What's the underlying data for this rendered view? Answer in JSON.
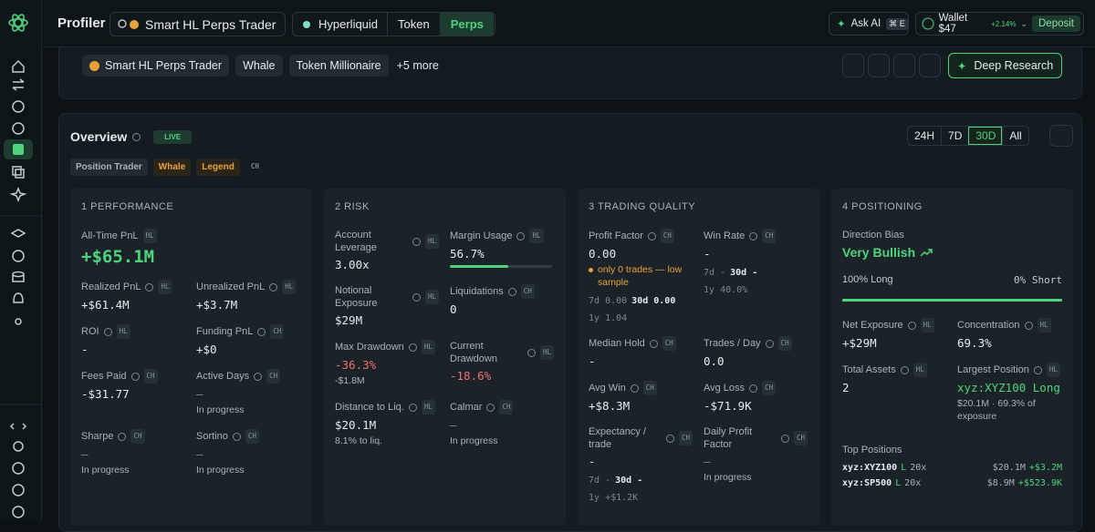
{
  "header": {
    "title": "Profiler",
    "search": "Smart HL Perps Trader",
    "chain": "Hyperliquid",
    "tabs": [
      "Token",
      "Perps"
    ],
    "ask_ai": "Ask AI",
    "shortcut": "⌘ E",
    "wallet": "Wallet $47",
    "wallet_change": "+2.14%",
    "deposit": "Deposit"
  },
  "profile": {
    "tags": [
      "Smart HL Perps Trader",
      "Whale",
      "Token Millionaire"
    ],
    "more": "+5 more",
    "deep_research": "Deep Research"
  },
  "overview": {
    "title": "Overview",
    "live": "LIVE",
    "ranges": [
      "24H",
      "7D",
      "30D",
      "All"
    ],
    "badges": [
      "Position Trader",
      "Whale",
      "Legend",
      "CH"
    ]
  },
  "cards": [
    {
      "title": "1 PERFORMANCE",
      "headline": {
        "label": "All-Time PnL",
        "src": "HL",
        "value": "+$65.1M",
        "color": "green"
      },
      "metrics": [
        {
          "label": "Realized PnL",
          "src": "HL",
          "value": "+$61.4M"
        },
        {
          "label": "Unrealized PnL",
          "src": "HL",
          "value": "+$3.7M"
        },
        {
          "label": "ROI",
          "src": "HL",
          "value": "-"
        },
        {
          "label": "Funding PnL",
          "src": "CH",
          "value": "+$0"
        },
        {
          "label": "Fees Paid",
          "src": "CH",
          "value": "-$31.77"
        },
        {
          "label": "Active Days",
          "src": "CH",
          "value": "—",
          "sub": "In progress"
        },
        {
          "label": "Sharpe",
          "src": "CH",
          "value": "—",
          "sub": "In progress"
        },
        {
          "label": "Sortino",
          "src": "CH",
          "value": "—",
          "sub": "In progress"
        }
      ]
    },
    {
      "title": "2 RISK",
      "metrics": [
        {
          "label": "Account Leverage",
          "src": "HL",
          "value": "3.00x"
        },
        {
          "label": "Margin Usage",
          "src": "HL",
          "value": "56.7%",
          "progress": 56.7
        },
        {
          "label": "Notional Exposure",
          "src": "HL",
          "value": "$29M"
        },
        {
          "label": "Liquidations",
          "src": "CH",
          "value": "0"
        },
        {
          "label": "Max Drawdown",
          "src": "HL",
          "value": "-36.3%",
          "color": "red",
          "sub": "-$1.8M"
        },
        {
          "label": "Current Drawdown",
          "src": "HL",
          "value": "-18.6%",
          "color": "red"
        },
        {
          "label": "Distance to Liq.",
          "src": "HL",
          "value": "$20.1M",
          "sub": "8.1% to liq."
        },
        {
          "label": "Calmar",
          "src": "CH",
          "value": "—",
          "sub": "In progress"
        }
      ]
    },
    {
      "title": "3 TRADING QUALITY",
      "metrics": [
        {
          "label": "Profit Factor",
          "src": "CH",
          "value": "0.00",
          "warn": "only 0 trades — low sample",
          "lines": [
            [
              {
                "k": "7d",
                "v": "0.00"
              },
              {
                "k": "30d",
                "v": "0.00"
              }
            ],
            [
              {
                "k": "1y",
                "v": "1.04"
              }
            ]
          ]
        },
        {
          "label": "Win Rate",
          "src": "CH",
          "value": "-",
          "lines": [
            [
              {
                "k": "7d",
                "v": "-"
              },
              {
                "k": "30d",
                "v": "-"
              }
            ],
            [
              {
                "k": "1y",
                "v": "40.0%"
              }
            ]
          ]
        },
        {
          "label": "Median Hold",
          "src": "CH",
          "value": "-"
        },
        {
          "label": "Trades / Day",
          "src": "CH",
          "value": "0.0"
        },
        {
          "label": "Avg Win",
          "src": "CH",
          "value": "+$8.3M"
        },
        {
          "label": "Avg Loss",
          "src": "CH",
          "value": "-$71.9K"
        },
        {
          "label": "Expectancy / trade",
          "src": "CH",
          "value": "-",
          "lines": [
            [
              {
                "k": "7d",
                "v": "-"
              },
              {
                "k": "30d",
                "v": "-"
              }
            ],
            [
              {
                "k": "1y",
                "v": "+$1.2K"
              }
            ]
          ]
        },
        {
          "label": "Daily Profit Factor",
          "src": "CH",
          "value": "—",
          "sub": "In progress"
        }
      ]
    },
    {
      "title": "4 POSITIONING",
      "headline": {
        "label": "Direction Bias",
        "value": "Very Bullish",
        "color": "green"
      },
      "split": {
        "long": "100% Long",
        "short": "0% Short",
        "long_share": 100
      },
      "metrics": [
        {
          "label": "Net Exposure",
          "src": "HL",
          "value": "+$29M"
        },
        {
          "label": "Concentration",
          "src": "HL",
          "value": "69.3%"
        },
        {
          "label": "Total Assets",
          "src": "HL",
          "value": "2"
        },
        {
          "label": "Largest Position",
          "src": "HL",
          "value": "xyz:XYZ100 Long",
          "color": "green",
          "sub": "$20.1M · 69.3% of exposure"
        }
      ],
      "top_positions": {
        "title": "Top Positions",
        "rows": [
          {
            "symbol": "xyz:XYZ100",
            "side": "L",
            "lev": "20x",
            "size": "$20.1M",
            "pnl": "+$3.2M"
          },
          {
            "symbol": "xyz:SP500",
            "side": "L",
            "lev": "20x",
            "size": "$8.9M",
            "pnl": "+$523.9K"
          }
        ]
      }
    }
  ]
}
